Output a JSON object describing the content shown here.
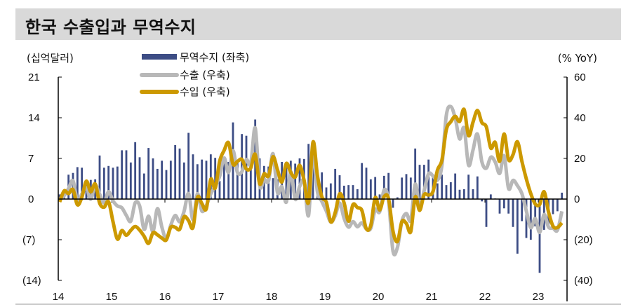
{
  "title": "한국 수출입과 무역수지",
  "chart_data": {
    "type": "bar+line",
    "title": "한국 수출입과 무역수지",
    "left_unit": "(십억달러)",
    "right_unit": "(% YoY)",
    "left_ylim": [
      -14,
      21
    ],
    "right_ylim": [
      -40,
      60
    ],
    "left_ticks": [
      "21",
      "14",
      "7",
      "0",
      "(7)",
      "(14)"
    ],
    "left_tick_values": [
      21,
      14,
      7,
      0,
      -7,
      -14
    ],
    "right_ticks": [
      "60",
      "40",
      "20",
      "0",
      "(20)",
      "(40)"
    ],
    "right_tick_values": [
      60,
      40,
      20,
      0,
      -20,
      -40
    ],
    "x_ticks": [
      "14",
      "15",
      "16",
      "17",
      "18",
      "19",
      "20",
      "21",
      "22",
      "23"
    ],
    "x_start": "2014-01",
    "x_frequency": "monthly",
    "legend_placement": "top-center",
    "colors": {
      "trade_balance": "#3d4d85",
      "exports": "#b8b8b8",
      "imports": "#cc9900"
    },
    "series": [
      {
        "name": "무역수지 (좌축)",
        "type": "bar",
        "axis": "left",
        "values": [
          0.8,
          1.0,
          4.2,
          4.5,
          5.5,
          5.4,
          2.4,
          3.3,
          3.4,
          7.5,
          5.4,
          5.7,
          5.4,
          5.6,
          8.4,
          8.4,
          6.3,
          9.8,
          7.2,
          4.4,
          8.8,
          7.0,
          5.2,
          6.6,
          5.0,
          6.6,
          9.3,
          8.7,
          6.3,
          11.4,
          7.7,
          6.0,
          6.8,
          6.6,
          7.7,
          7.1,
          3.1,
          6.9,
          6.4,
          13.2,
          6.2,
          11.2,
          10.9,
          6.6,
          13.7,
          7.0,
          5.7,
          5.6,
          3.6,
          3.4,
          6.4,
          6.4,
          6.6,
          6.1,
          7.0,
          6.9,
          9.5,
          6.6,
          5.0,
          4.6,
          2.0,
          2.7,
          5.2,
          4.1,
          2.3,
          2.4,
          2.4,
          1.7,
          6.2,
          5.4,
          3.4,
          3.8,
          0.8,
          4.0,
          4.5,
          -1.5,
          0.3,
          3.7,
          4.3,
          3.7,
          8.7,
          5.9,
          5.9,
          6.8,
          3.9,
          2.7,
          4.2,
          2.4,
          2.9,
          4.4,
          1.6,
          1.7,
          4.2,
          1.7,
          3.9,
          -0.4,
          -4.8,
          0.8,
          0.1,
          -2.5,
          -1.6,
          -2.5,
          -4.8,
          -9.4,
          -3.8,
          -6.7,
          -7.0,
          -4.7,
          -12.7,
          -5.3,
          -4.6,
          -2.6,
          -2.1,
          1.1
        ]
      },
      {
        "name": "수출 (우축)",
        "type": "line",
        "axis": "right",
        "values": [
          -0.2,
          1.6,
          5.2,
          9.0,
          -0.8,
          2.5,
          5.6,
          -0.1,
          6.8,
          2.4,
          -1.9,
          3.6,
          -0.9,
          -3.4,
          -4.3,
          -8.0,
          -10.9,
          -1.8,
          -3.4,
          -14.9,
          -8.4,
          -15.9,
          -4.7,
          -13.8,
          -19.6,
          -12.9,
          -8.1,
          -11.1,
          -6.0,
          2.7,
          -10.2,
          2.6,
          -5.9,
          -3.2,
          2.5,
          6.4,
          11.2,
          20.2,
          13.1,
          23.8,
          13.1,
          13.5,
          19.4,
          17.4,
          35.0,
          6.8,
          9.6,
          8.9,
          22.3,
          3.3,
          6.1,
          -1.5,
          13.5,
          -0.1,
          6.2,
          8.7,
          -8.1,
          22.7,
          3.6,
          -1.2,
          -5.9,
          -11.3,
          -8.2,
          -2.0,
          -9.5,
          -13.8,
          -11.1,
          -13.6,
          -11.7,
          -14.7,
          -14.4,
          -5.2,
          -6.3,
          4.5,
          -0.7,
          -25.6,
          -23.8,
          -10.9,
          -7.1,
          -10.3,
          7.3,
          -3.8,
          4.0,
          12.4,
          11.4,
          9.3,
          16.4,
          41.2,
          45.5,
          39.8,
          29.6,
          34.9,
          16.7,
          24.1,
          32.0,
          18.3,
          15.2,
          20.6,
          18.2,
          12.6,
          21.3,
          5.2,
          9.2,
          6.6,
          2.7,
          -5.8,
          -14.1,
          -9.6,
          -16.4,
          -7.6,
          -13.8,
          -14.3,
          -15.3,
          -6.0
        ]
      },
      {
        "name": "수입 (우축)",
        "type": "line",
        "axis": "right",
        "values": [
          -1.4,
          4.0,
          2.7,
          4.7,
          -2.8,
          0.9,
          8.8,
          3.6,
          7.4,
          -2.0,
          -4.0,
          -1.3,
          -11.1,
          -19.7,
          -15.5,
          -17.8,
          -15.4,
          -13.5,
          -15.3,
          -18.3,
          -21.8,
          -16.6,
          -17.6,
          -19.2,
          -20.1,
          -13.9,
          -13.9,
          -14.9,
          -8.7,
          -10.6,
          -14.0,
          0.8,
          -2.2,
          -4.8,
          9.7,
          5.4,
          18.6,
          23.9,
          27.7,
          17.2,
          18.5,
          19.5,
          14.8,
          15.3,
          22.0,
          7.5,
          12.4,
          11.4,
          20.8,
          14.5,
          8.4,
          17.5,
          13.1,
          10.8,
          16.6,
          9.2,
          -1.6,
          28.0,
          11.5,
          1.1,
          -1.5,
          -11.2,
          -6.6,
          2.6,
          -1.9,
          -10.9,
          -2.7,
          -4.2,
          -5.6,
          -14.6,
          -13.0,
          0.7,
          -5.4,
          1.2,
          0.2,
          -15.8,
          -20.9,
          -11.1,
          -12.0,
          -16.0,
          1.0,
          -5.6,
          2.1,
          2.0,
          3.7,
          14.2,
          19.1,
          34.1,
          38.0,
          40.7,
          38.2,
          44.1,
          31.2,
          37.8,
          43.6,
          37.6,
          35.5,
          25.1,
          27.9,
          18.6,
          32.0,
          19.4,
          21.8,
          28.2,
          18.6,
          9.9,
          2.7,
          -2.4,
          -2.7,
          3.6,
          -6.4,
          -13.3,
          -14.0,
          -11.7
        ]
      }
    ]
  }
}
